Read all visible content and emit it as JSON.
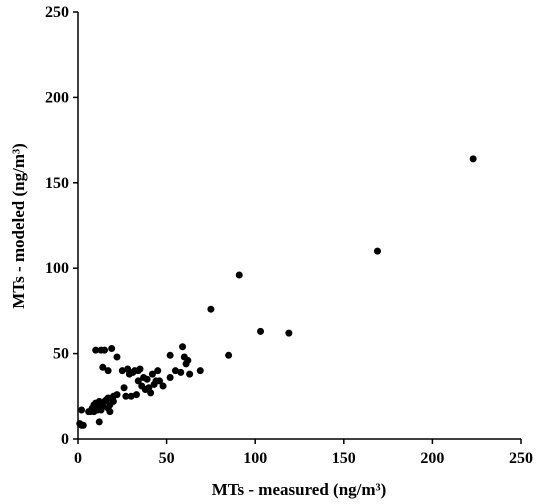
{
  "chart_data": {
    "type": "scatter",
    "title": "",
    "xlabel": "MTs - measured (ng/m³)",
    "ylabel": "MTs - modeled (ng/m³)",
    "xlim": [
      0,
      250
    ],
    "ylim": [
      0,
      250
    ],
    "xticks": [
      "0",
      "50",
      "100",
      "150",
      "200",
      "250"
    ],
    "yticks": [
      "0",
      "50",
      "100",
      "150",
      "200",
      "250"
    ],
    "grid": false,
    "legend": "none",
    "point_color": "#000000",
    "series": [
      {
        "points": [
          [
            1,
            9
          ],
          [
            2,
            8
          ],
          [
            3,
            8
          ],
          [
            2,
            17
          ],
          [
            6,
            16
          ],
          [
            7,
            16
          ],
          [
            8,
            18
          ],
          [
            8,
            17
          ],
          [
            9,
            20
          ],
          [
            9,
            16
          ],
          [
            10,
            21
          ],
          [
            11,
            17
          ],
          [
            11,
            19
          ],
          [
            12,
            22
          ],
          [
            13,
            17
          ],
          [
            14,
            19
          ],
          [
            15,
            22
          ],
          [
            16,
            23
          ],
          [
            17,
            24
          ],
          [
            17,
            18
          ],
          [
            18,
            20
          ],
          [
            18,
            16
          ],
          [
            20,
            25
          ],
          [
            20,
            22
          ],
          [
            22,
            26
          ],
          [
            10,
            52
          ],
          [
            13,
            52
          ],
          [
            14,
            42
          ],
          [
            15,
            52
          ],
          [
            17,
            40
          ],
          [
            19,
            53
          ],
          [
            22,
            48
          ],
          [
            12,
            10
          ],
          [
            25,
            40
          ],
          [
            26,
            30
          ],
          [
            27,
            25
          ],
          [
            28,
            41
          ],
          [
            29,
            38
          ],
          [
            30,
            25
          ],
          [
            31,
            39
          ],
          [
            32,
            40
          ],
          [
            33,
            26
          ],
          [
            34,
            34
          ],
          [
            34,
            40
          ],
          [
            35,
            41
          ],
          [
            36,
            31
          ],
          [
            37,
            36
          ],
          [
            38,
            29
          ],
          [
            39,
            35
          ],
          [
            40,
            30
          ],
          [
            41,
            27
          ],
          [
            42,
            38
          ],
          [
            43,
            32
          ],
          [
            44,
            34
          ],
          [
            45,
            40
          ],
          [
            46,
            34
          ],
          [
            48,
            31
          ],
          [
            52,
            36
          ],
          [
            52,
            49
          ],
          [
            55,
            40
          ],
          [
            58,
            39
          ],
          [
            59,
            54
          ],
          [
            60,
            48
          ],
          [
            61,
            44
          ],
          [
            62,
            46
          ],
          [
            63,
            38
          ],
          [
            69,
            40
          ],
          [
            75,
            76
          ],
          [
            85,
            49
          ],
          [
            91,
            96
          ],
          [
            103,
            63
          ],
          [
            119,
            62
          ],
          [
            169,
            110
          ],
          [
            223,
            164
          ]
        ]
      }
    ]
  }
}
